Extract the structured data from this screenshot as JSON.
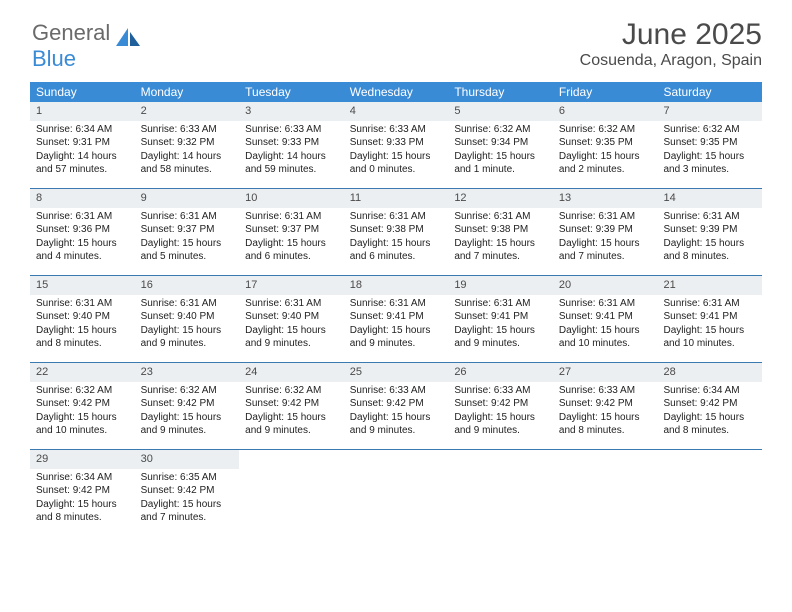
{
  "logo": {
    "text1": "General",
    "text2": "Blue"
  },
  "header": {
    "title": "June 2025",
    "location": "Cosuenda, Aragon, Spain"
  },
  "colors": {
    "header_bar": "#3a8bd6",
    "daynum_bg": "#eceff1",
    "week_border": "#3a7ab0",
    "text": "#333333"
  },
  "weekdays": [
    "Sunday",
    "Monday",
    "Tuesday",
    "Wednesday",
    "Thursday",
    "Friday",
    "Saturday"
  ],
  "days": [
    {
      "n": 1,
      "sunrise": "6:34 AM",
      "sunset": "9:31 PM",
      "daylight": "14 hours and 57 minutes."
    },
    {
      "n": 2,
      "sunrise": "6:33 AM",
      "sunset": "9:32 PM",
      "daylight": "14 hours and 58 minutes."
    },
    {
      "n": 3,
      "sunrise": "6:33 AM",
      "sunset": "9:33 PM",
      "daylight": "14 hours and 59 minutes."
    },
    {
      "n": 4,
      "sunrise": "6:33 AM",
      "sunset": "9:33 PM",
      "daylight": "15 hours and 0 minutes."
    },
    {
      "n": 5,
      "sunrise": "6:32 AM",
      "sunset": "9:34 PM",
      "daylight": "15 hours and 1 minute."
    },
    {
      "n": 6,
      "sunrise": "6:32 AM",
      "sunset": "9:35 PM",
      "daylight": "15 hours and 2 minutes."
    },
    {
      "n": 7,
      "sunrise": "6:32 AM",
      "sunset": "9:35 PM",
      "daylight": "15 hours and 3 minutes."
    },
    {
      "n": 8,
      "sunrise": "6:31 AM",
      "sunset": "9:36 PM",
      "daylight": "15 hours and 4 minutes."
    },
    {
      "n": 9,
      "sunrise": "6:31 AM",
      "sunset": "9:37 PM",
      "daylight": "15 hours and 5 minutes."
    },
    {
      "n": 10,
      "sunrise": "6:31 AM",
      "sunset": "9:37 PM",
      "daylight": "15 hours and 6 minutes."
    },
    {
      "n": 11,
      "sunrise": "6:31 AM",
      "sunset": "9:38 PM",
      "daylight": "15 hours and 6 minutes."
    },
    {
      "n": 12,
      "sunrise": "6:31 AM",
      "sunset": "9:38 PM",
      "daylight": "15 hours and 7 minutes."
    },
    {
      "n": 13,
      "sunrise": "6:31 AM",
      "sunset": "9:39 PM",
      "daylight": "15 hours and 7 minutes."
    },
    {
      "n": 14,
      "sunrise": "6:31 AM",
      "sunset": "9:39 PM",
      "daylight": "15 hours and 8 minutes."
    },
    {
      "n": 15,
      "sunrise": "6:31 AM",
      "sunset": "9:40 PM",
      "daylight": "15 hours and 8 minutes."
    },
    {
      "n": 16,
      "sunrise": "6:31 AM",
      "sunset": "9:40 PM",
      "daylight": "15 hours and 9 minutes."
    },
    {
      "n": 17,
      "sunrise": "6:31 AM",
      "sunset": "9:40 PM",
      "daylight": "15 hours and 9 minutes."
    },
    {
      "n": 18,
      "sunrise": "6:31 AM",
      "sunset": "9:41 PM",
      "daylight": "15 hours and 9 minutes."
    },
    {
      "n": 19,
      "sunrise": "6:31 AM",
      "sunset": "9:41 PM",
      "daylight": "15 hours and 9 minutes."
    },
    {
      "n": 20,
      "sunrise": "6:31 AM",
      "sunset": "9:41 PM",
      "daylight": "15 hours and 10 minutes."
    },
    {
      "n": 21,
      "sunrise": "6:31 AM",
      "sunset": "9:41 PM",
      "daylight": "15 hours and 10 minutes."
    },
    {
      "n": 22,
      "sunrise": "6:32 AM",
      "sunset": "9:42 PM",
      "daylight": "15 hours and 10 minutes."
    },
    {
      "n": 23,
      "sunrise": "6:32 AM",
      "sunset": "9:42 PM",
      "daylight": "15 hours and 9 minutes."
    },
    {
      "n": 24,
      "sunrise": "6:32 AM",
      "sunset": "9:42 PM",
      "daylight": "15 hours and 9 minutes."
    },
    {
      "n": 25,
      "sunrise": "6:33 AM",
      "sunset": "9:42 PM",
      "daylight": "15 hours and 9 minutes."
    },
    {
      "n": 26,
      "sunrise": "6:33 AM",
      "sunset": "9:42 PM",
      "daylight": "15 hours and 9 minutes."
    },
    {
      "n": 27,
      "sunrise": "6:33 AM",
      "sunset": "9:42 PM",
      "daylight": "15 hours and 8 minutes."
    },
    {
      "n": 28,
      "sunrise": "6:34 AM",
      "sunset": "9:42 PM",
      "daylight": "15 hours and 8 minutes."
    },
    {
      "n": 29,
      "sunrise": "6:34 AM",
      "sunset": "9:42 PM",
      "daylight": "15 hours and 8 minutes."
    },
    {
      "n": 30,
      "sunrise": "6:35 AM",
      "sunset": "9:42 PM",
      "daylight": "15 hours and 7 minutes."
    }
  ],
  "labels": {
    "sunrise": "Sunrise:",
    "sunset": "Sunset:",
    "daylight": "Daylight:"
  },
  "layout": {
    "start_weekday": 0,
    "days_in_month": 30,
    "columns": 7
  }
}
